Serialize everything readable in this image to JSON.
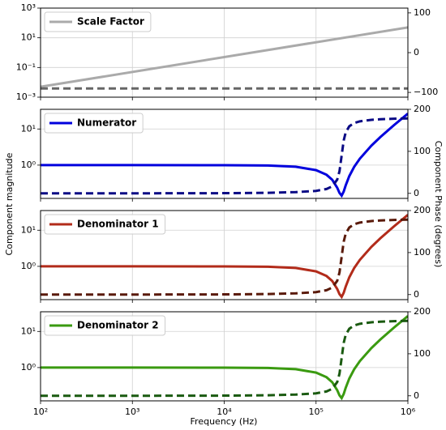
{
  "xlabel": "Frequency (Hz)",
  "ylabel": "Component magnitude",
  "y2label": "Component Phase (degrees)",
  "chart_data": [
    {
      "type": "line",
      "xscale": "log",
      "yscale": "log",
      "grid": true,
      "legend": "upper left",
      "x": [
        100,
        1000000
      ],
      "xlim": [
        100,
        1000000
      ],
      "xticks": [
        100,
        1000,
        10000,
        100000,
        1000000
      ],
      "ylim": [
        0.001,
        1000
      ],
      "yticks": [
        {
          "value": 0.001,
          "label": "10⁻³"
        },
        {
          "value": 0.1,
          "label": "10⁻¹"
        },
        {
          "value": 10,
          "label": "10¹"
        },
        {
          "value": 1000,
          "label": "10³"
        }
      ],
      "y2lim": [
        -112,
        112
      ],
      "y2ticks": [
        {
          "value": -100,
          "label": "−100"
        },
        0,
        100
      ],
      "series": [
        {
          "name": "Scale Factor",
          "color": "#aaaaaa",
          "values": [
            0.005,
            50
          ]
        },
        {
          "color": "#666666",
          "dashed": true,
          "axis": "y2",
          "values": [
            -90,
            -90
          ]
        }
      ]
    },
    {
      "type": "line",
      "xscale": "log",
      "yscale": "log",
      "grid": true,
      "legend": "upper left",
      "x": [
        100,
        1000,
        10000,
        30000,
        60000,
        100000,
        130000,
        150000,
        170000,
        180000,
        190000,
        200000,
        210000,
        230000,
        260000,
        300000,
        400000,
        500000,
        700000,
        1000000
      ],
      "xlim": [
        100,
        1000000
      ],
      "xticks": [
        100,
        1000,
        10000,
        100000,
        1000000
      ],
      "ylim": [
        0.12,
        35
      ],
      "yticks": [
        {
          "value": 1,
          "label": "10⁰"
        },
        {
          "value": 10,
          "label": "10¹"
        }
      ],
      "y2lim": [
        -12,
        200
      ],
      "y2ticks": [
        0,
        100,
        200
      ],
      "series": [
        {
          "name": "Numerator",
          "color": "#0000dd",
          "values": [
            1,
            1,
            0.997,
            0.975,
            0.901,
            0.727,
            0.541,
            0.394,
            0.237,
            0.17,
            0.143,
            0.185,
            0.272,
            0.496,
            0.894,
            1.51,
            3.445,
            5.937,
            12.58,
            26.71
          ]
        },
        {
          "color": "#0a0a85",
          "dashed": true,
          "axis": "y2",
          "values": [
            0,
            0.04,
            0.43,
            1.3,
            2.9,
            5.9,
            10.4,
            16.7,
            32.7,
            52.7,
            90,
            125.8,
            144.6,
            159.6,
            167.4,
            171.4,
            175,
            176.4,
            177.6,
            178.4
          ]
        }
      ]
    },
    {
      "type": "line",
      "xscale": "log",
      "yscale": "log",
      "grid": true,
      "legend": "upper left",
      "x": [
        100,
        1000,
        10000,
        30000,
        60000,
        100000,
        130000,
        150000,
        170000,
        180000,
        190000,
        200000,
        210000,
        230000,
        260000,
        300000,
        400000,
        500000,
        700000,
        1000000
      ],
      "xlim": [
        100,
        1000000
      ],
      "xticks": [
        100,
        1000,
        10000,
        100000,
        1000000
      ],
      "ylim": [
        0.12,
        35
      ],
      "yticks": [
        {
          "value": 1,
          "label": "10⁰"
        },
        {
          "value": 10,
          "label": "10¹"
        }
      ],
      "y2lim": [
        -12,
        200
      ],
      "y2ticks": [
        0,
        100,
        200
      ],
      "series": [
        {
          "name": "Denominator 1",
          "color": "#b22b1a",
          "values": [
            1,
            1,
            0.997,
            0.975,
            0.901,
            0.727,
            0.541,
            0.394,
            0.237,
            0.17,
            0.143,
            0.185,
            0.272,
            0.496,
            0.894,
            1.51,
            3.445,
            5.937,
            12.58,
            26.71
          ]
        },
        {
          "color": "#5a1a0a",
          "dashed": true,
          "axis": "y2",
          "values": [
            0,
            0.04,
            0.43,
            1.3,
            2.9,
            5.9,
            10.4,
            16.7,
            32.7,
            52.7,
            90,
            125.8,
            144.6,
            159.6,
            167.4,
            171.4,
            175,
            176.4,
            177.6,
            178.4
          ]
        }
      ]
    },
    {
      "type": "line",
      "xscale": "log",
      "yscale": "log",
      "grid": true,
      "legend": "upper left",
      "x": [
        100,
        1000,
        10000,
        30000,
        60000,
        100000,
        130000,
        150000,
        170000,
        180000,
        190000,
        200000,
        210000,
        230000,
        260000,
        300000,
        400000,
        500000,
        700000,
        1000000
      ],
      "xlim": [
        100,
        1000000
      ],
      "xticks": [
        {
          "value": 100,
          "label": "10²"
        },
        {
          "value": 1000,
          "label": "10³"
        },
        {
          "value": 10000,
          "label": "10⁴"
        },
        {
          "value": 100000,
          "label": "10⁵"
        },
        {
          "value": 1000000,
          "label": "10⁶"
        }
      ],
      "ylim": [
        0.12,
        35
      ],
      "yticks": [
        {
          "value": 1,
          "label": "10⁰"
        },
        {
          "value": 10,
          "label": "10¹"
        }
      ],
      "y2lim": [
        -12,
        200
      ],
      "y2ticks": [
        0,
        100,
        200
      ],
      "series": [
        {
          "name": "Denominator 2",
          "color": "#3a9a10",
          "values": [
            1,
            1,
            0.997,
            0.975,
            0.901,
            0.727,
            0.541,
            0.394,
            0.237,
            0.17,
            0.143,
            0.185,
            0.272,
            0.496,
            0.894,
            1.51,
            3.445,
            5.937,
            12.58,
            26.71
          ]
        },
        {
          "color": "#1a5a10",
          "dashed": true,
          "axis": "y2",
          "values": [
            0,
            0.04,
            0.43,
            1.3,
            2.9,
            5.9,
            10.4,
            16.7,
            32.7,
            52.7,
            90,
            125.8,
            144.6,
            159.6,
            167.4,
            171.4,
            175,
            176.4,
            177.6,
            178.4
          ]
        }
      ]
    }
  ]
}
